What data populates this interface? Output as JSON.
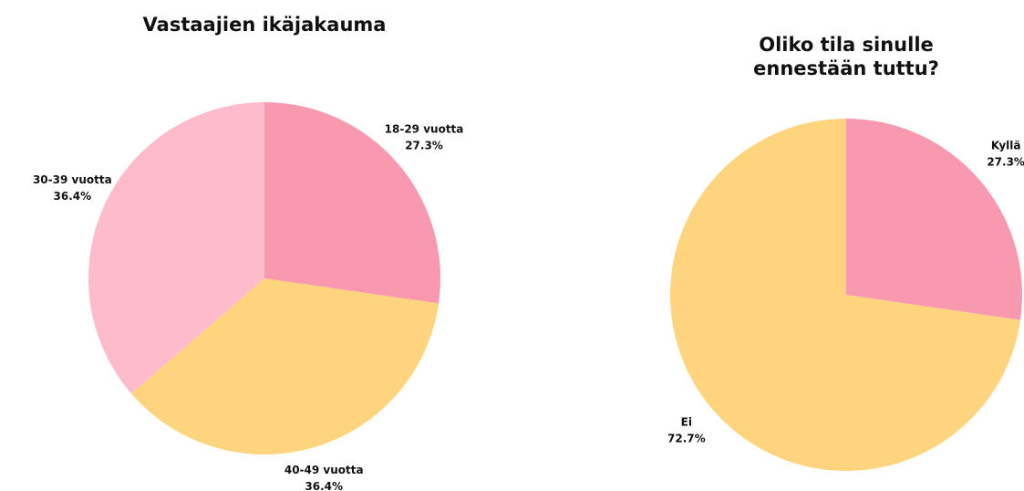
{
  "chart_data": [
    {
      "type": "pie",
      "title": "Vastaajien ikäjakauma",
      "categories": [
        "18-29 vuotta",
        "40-49 vuotta",
        "30-39 vuotta"
      ],
      "values": [
        27.3,
        36.4,
        36.4
      ],
      "value_labels": [
        "27.3%",
        "36.4%",
        "36.4%"
      ],
      "colors": [
        "#f999b0",
        "#fed47e",
        "#fdbbcc"
      ]
    },
    {
      "type": "pie",
      "title": "Oliko tila sinulle ennestään tuttu?",
      "categories": [
        "Kyllä",
        "Ei"
      ],
      "values": [
        27.3,
        72.7
      ],
      "value_labels": [
        "27.3%",
        "72.7%"
      ],
      "colors": [
        "#f999b0",
        "#fed47e"
      ]
    }
  ]
}
